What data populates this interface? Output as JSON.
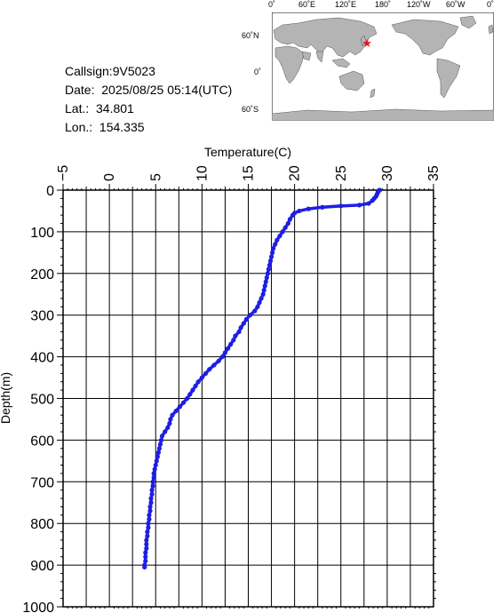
{
  "header": {
    "callsign": "Callsign:9V5023",
    "date": "Date:  2025/08/25 05:14(UTC)",
    "lat": "Lat.:  34.801",
    "lon": "Lon.:  154.335"
  },
  "map": {
    "top_labels": [
      "0˚",
      "60˚E",
      "120˚E",
      "180˚",
      "120˚W",
      "60˚W",
      "0˚"
    ],
    "side_labels": [
      "60˚N",
      "0˚",
      "60˚S"
    ],
    "marker": {
      "lat": 34.801,
      "lon": 154.335,
      "symbol": "★",
      "color": "#e8141c"
    },
    "colors": {
      "ocean": "#ffffff",
      "land": "#b4b4b4",
      "border": "#000000"
    }
  },
  "chart_data": {
    "type": "scatter",
    "title": "",
    "xlabel": "Temperature(C)",
    "ylabel": "Depth(m)",
    "xlim": [
      -5,
      35
    ],
    "ylim": [
      0,
      1000
    ],
    "y_inverted": true,
    "x_axis_position": "top",
    "x_ticks": [
      "−5",
      "0",
      "5",
      "10",
      "15",
      "20",
      "25",
      "30",
      "35"
    ],
    "y_ticks": [
      "0",
      "100",
      "200",
      "300",
      "400",
      "500",
      "600",
      "700",
      "800",
      "900",
      "1000"
    ],
    "grid": true,
    "series_color": "#1e1ee6",
    "profile": [
      [
        29.2,
        0
      ],
      [
        29.0,
        5
      ],
      [
        28.9,
        10
      ],
      [
        28.8,
        15
      ],
      [
        28.6,
        20
      ],
      [
        28.4,
        25
      ],
      [
        28.0,
        32
      ],
      [
        27.0,
        36
      ],
      [
        25.0,
        38
      ],
      [
        23.0,
        41
      ],
      [
        21.5,
        45
      ],
      [
        20.5,
        50
      ],
      [
        20.0,
        55
      ],
      [
        19.8,
        60
      ],
      [
        19.5,
        70
      ],
      [
        19.3,
        80
      ],
      [
        19.0,
        90
      ],
      [
        18.7,
        100
      ],
      [
        18.4,
        110
      ],
      [
        18.1,
        120
      ],
      [
        17.9,
        130
      ],
      [
        17.7,
        140
      ],
      [
        17.6,
        150
      ],
      [
        17.5,
        160
      ],
      [
        17.4,
        170
      ],
      [
        17.3,
        180
      ],
      [
        17.2,
        190
      ],
      [
        17.1,
        200
      ],
      [
        17.0,
        210
      ],
      [
        16.9,
        220
      ],
      [
        16.8,
        230
      ],
      [
        16.7,
        240
      ],
      [
        16.6,
        250
      ],
      [
        16.4,
        260
      ],
      [
        16.2,
        270
      ],
      [
        16.0,
        280
      ],
      [
        15.7,
        290
      ],
      [
        15.2,
        300
      ],
      [
        14.8,
        310
      ],
      [
        14.5,
        320
      ],
      [
        14.2,
        330
      ],
      [
        14.0,
        340
      ],
      [
        13.6,
        350
      ],
      [
        13.4,
        360
      ],
      [
        13.1,
        370
      ],
      [
        12.8,
        380
      ],
      [
        12.5,
        390
      ],
      [
        12.2,
        400
      ],
      [
        11.8,
        410
      ],
      [
        11.3,
        420
      ],
      [
        10.8,
        430
      ],
      [
        10.4,
        440
      ],
      [
        10.0,
        450
      ],
      [
        9.6,
        460
      ],
      [
        9.3,
        470
      ],
      [
        9.0,
        480
      ],
      [
        8.7,
        490
      ],
      [
        8.4,
        500
      ],
      [
        8.0,
        510
      ],
      [
        7.6,
        520
      ],
      [
        7.2,
        530
      ],
      [
        6.8,
        540
      ],
      [
        6.6,
        550
      ],
      [
        6.5,
        560
      ],
      [
        6.3,
        570
      ],
      [
        6.0,
        580
      ],
      [
        5.7,
        590
      ],
      [
        5.6,
        600
      ],
      [
        5.5,
        610
      ],
      [
        5.4,
        620
      ],
      [
        5.3,
        630
      ],
      [
        5.2,
        640
      ],
      [
        5.1,
        650
      ],
      [
        5.0,
        660
      ],
      [
        4.9,
        670
      ],
      [
        4.8,
        680
      ],
      [
        4.8,
        690
      ],
      [
        4.7,
        700
      ],
      [
        4.7,
        710
      ],
      [
        4.6,
        720
      ],
      [
        4.6,
        730
      ],
      [
        4.5,
        740
      ],
      [
        4.5,
        750
      ],
      [
        4.4,
        760
      ],
      [
        4.4,
        770
      ],
      [
        4.3,
        780
      ],
      [
        4.3,
        790
      ],
      [
        4.2,
        800
      ],
      [
        4.2,
        810
      ],
      [
        4.1,
        820
      ],
      [
        4.1,
        830
      ],
      [
        4.0,
        840
      ],
      [
        4.0,
        850
      ],
      [
        4.0,
        860
      ],
      [
        3.9,
        870
      ],
      [
        3.9,
        880
      ],
      [
        3.9,
        890
      ],
      [
        3.8,
        900
      ],
      [
        3.8,
        905
      ]
    ]
  }
}
